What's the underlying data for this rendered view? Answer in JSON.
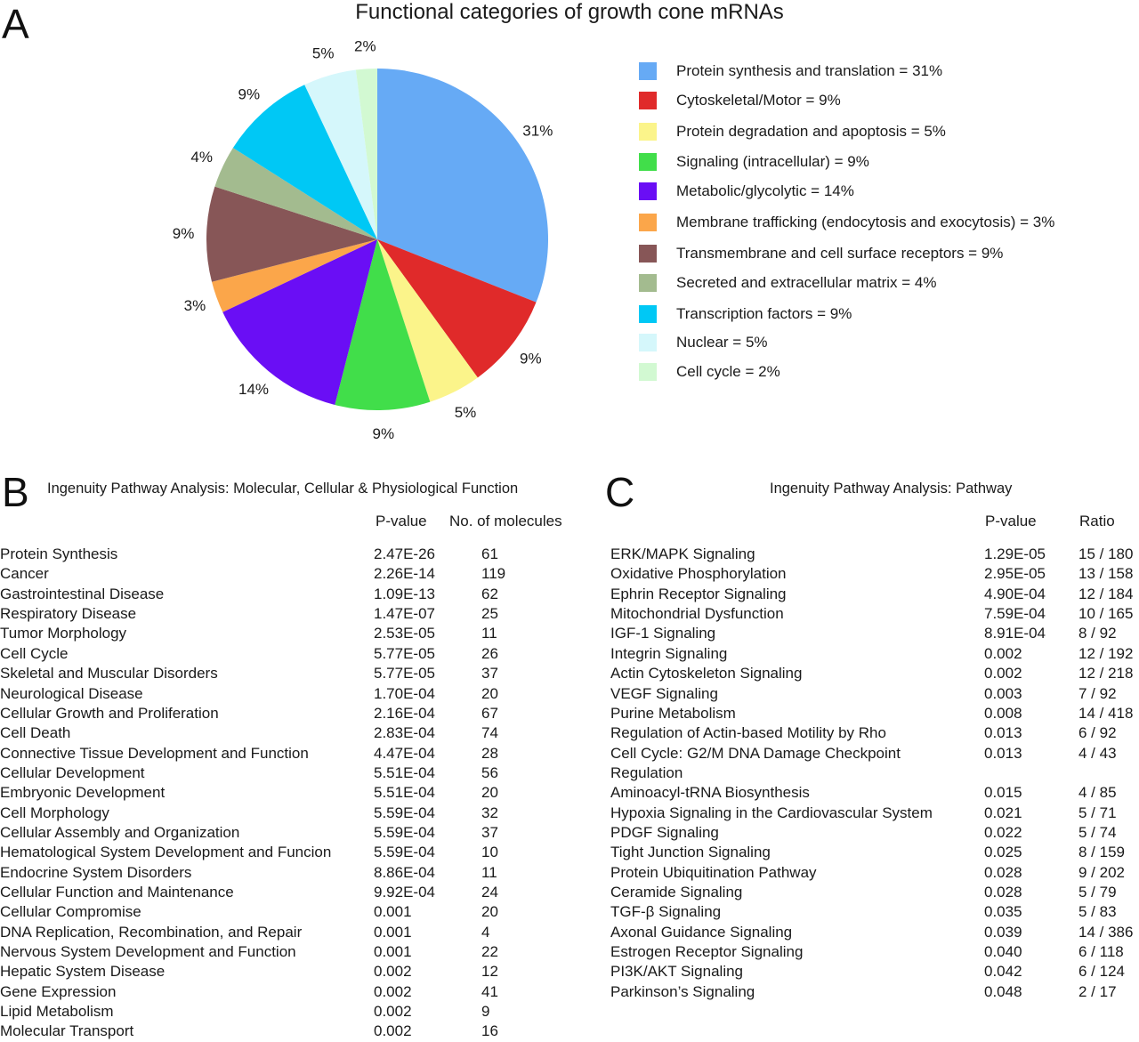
{
  "panels": {
    "a": "A",
    "b": "B",
    "c": "C"
  },
  "chart_data": [
    {
      "type": "pie",
      "title": "Functional categories of growth cone mRNAs",
      "legend_position": "right",
      "slices": [
        {
          "label": "Protein synthesis and translation = 31%",
          "value": 31,
          "pct_label": "31%",
          "color": "#66aaf5"
        },
        {
          "label": "Cytoskeletal/Motor = 9%",
          "value": 9,
          "pct_label": "9%",
          "color": "#e02a2a"
        },
        {
          "label": "Protein degradation and apoptosis = 5%",
          "value": 5,
          "pct_label": "5%",
          "color": "#fbf48a"
        },
        {
          "label": "Signaling (intracellular) = 9%",
          "value": 9,
          "pct_label": "9%",
          "color": "#41de4a"
        },
        {
          "label": "Metabolic/glycolytic = 14%",
          "value": 14,
          "pct_label": "14%",
          "color": "#6a0ef5"
        },
        {
          "label": "Membrane trafficking (endocytosis and exocytosis) = 3%",
          "value": 3,
          "pct_label": "3%",
          "color": "#fba64a"
        },
        {
          "label": "Transmembrane and cell surface receptors = 9%",
          "value": 9,
          "pct_label": "9%",
          "color": "#875657"
        },
        {
          "label": "Secreted and extracellular matrix = 4%",
          "value": 4,
          "pct_label": "4%",
          "color": "#a3bb8f"
        },
        {
          "label": "Transcription factors = 9%",
          "value": 9,
          "pct_label": "9%",
          "color": "#00c8f5"
        },
        {
          "label": "Nuclear = 5%",
          "value": 5,
          "pct_label": "5%",
          "color": "#d5f7fb"
        },
        {
          "label": "Cell cycle = 2%",
          "value": 2,
          "pct_label": "2%",
          "color": "#d2f9d2"
        }
      ]
    },
    {
      "type": "table",
      "title": "Ingenuity Pathway Analysis: Molecular, Cellular & Physiological Function",
      "columns": [
        "",
        "P-value",
        "No. of molecules"
      ],
      "rows": [
        [
          "Protein Synthesis",
          "2.47E-26",
          "61"
        ],
        [
          "Cancer",
          "2.26E-14",
          "119"
        ],
        [
          "Gastrointestinal Disease",
          "1.09E-13",
          "62"
        ],
        [
          "Respiratory Disease",
          "1.47E-07",
          "25"
        ],
        [
          "Tumor Morphology",
          "2.53E-05",
          "11"
        ],
        [
          "Cell Cycle",
          "5.77E-05",
          "26"
        ],
        [
          "Skeletal and Muscular Disorders",
          "5.77E-05",
          "37"
        ],
        [
          "Neurological Disease",
          "1.70E-04",
          "20"
        ],
        [
          "Cellular Growth and Proliferation",
          "2.16E-04",
          "67"
        ],
        [
          "Cell Death",
          "2.83E-04",
          "74"
        ],
        [
          "Connective Tissue Development and Function",
          "4.47E-04",
          "28"
        ],
        [
          "Cellular Development",
          "5.51E-04",
          "56"
        ],
        [
          "Embryonic Development",
          "5.51E-04",
          "20"
        ],
        [
          "Cell Morphology",
          "5.59E-04",
          "32"
        ],
        [
          "Cellular Assembly and Organization",
          "5.59E-04",
          "37"
        ],
        [
          "Hematological System Development and Funcion",
          "5.59E-04",
          "10"
        ],
        [
          "Endocrine System Disorders",
          "8.86E-04",
          "11"
        ],
        [
          "Cellular Function and Maintenance",
          "9.92E-04",
          "24"
        ],
        [
          "Cellular Compromise",
          "0.001",
          "20"
        ],
        [
          "DNA Replication, Recombination, and Repair",
          "0.001",
          "4"
        ],
        [
          "Nervous System Development and Function",
          "0.001",
          "22"
        ],
        [
          "Hepatic System Disease",
          "0.002",
          "12"
        ],
        [
          "Gene Expression",
          "0.002",
          "41"
        ],
        [
          "Lipid Metabolism",
          "0.002",
          "9"
        ],
        [
          "Molecular Transport",
          "0.002",
          "16"
        ]
      ]
    },
    {
      "type": "table",
      "title": "Ingenuity Pathway Analysis: Pathway",
      "columns": [
        "",
        "P-value",
        "Ratio"
      ],
      "rows": [
        [
          "ERK/MAPK Signaling",
          "1.29E-05",
          "15 / 180"
        ],
        [
          "Oxidative Phosphorylation",
          "2.95E-05",
          "13 / 158"
        ],
        [
          "Ephrin Receptor Signaling",
          "4.90E-04",
          "12 / 184"
        ],
        [
          "Mitochondrial Dysfunction",
          "7.59E-04",
          "10 / 165"
        ],
        [
          "IGF-1 Signaling",
          "8.91E-04",
          "8 / 92"
        ],
        [
          "Integrin Signaling",
          "0.002",
          "12 / 192"
        ],
        [
          "Actin Cytoskeleton Signaling",
          "0.002",
          "12 / 218"
        ],
        [
          "VEGF Signaling",
          "0.003",
          "7 / 92"
        ],
        [
          "Purine Metabolism",
          "0.008",
          "14 / 418"
        ],
        [
          "Regulation of Actin-based Motility by Rho",
          "0.013",
          "6 / 92"
        ],
        [
          "Cell Cycle: G2/M DNA Damage Checkpoint",
          "0.013",
          "4 / 43"
        ],
        [
          "Regulation",
          "",
          ""
        ],
        [
          "Aminoacyl-tRNA Biosynthesis",
          "0.015",
          "4 / 85"
        ],
        [
          "Hypoxia Signaling in the Cardiovascular System",
          "0.021",
          "5 / 71"
        ],
        [
          "PDGF Signaling",
          "0.022",
          "5 / 74"
        ],
        [
          "Tight Junction Signaling",
          "0.025",
          "8 / 159"
        ],
        [
          "Protein Ubiquitination Pathway",
          "0.028",
          "9 / 202"
        ],
        [
          "Ceramide Signaling",
          "0.028",
          "5 / 79"
        ],
        [
          "TGF-β Signaling",
          "0.035",
          "5 / 83"
        ],
        [
          "Axonal Guidance Signaling",
          "0.039",
          "14 / 386"
        ],
        [
          "Estrogen Receptor Signaling",
          "0.040",
          "6 / 118"
        ],
        [
          "PI3K/AKT Signaling",
          "0.042",
          "6 / 124"
        ],
        [
          "Parkinson’s Signaling",
          "0.048",
          "2 / 17"
        ]
      ]
    }
  ]
}
